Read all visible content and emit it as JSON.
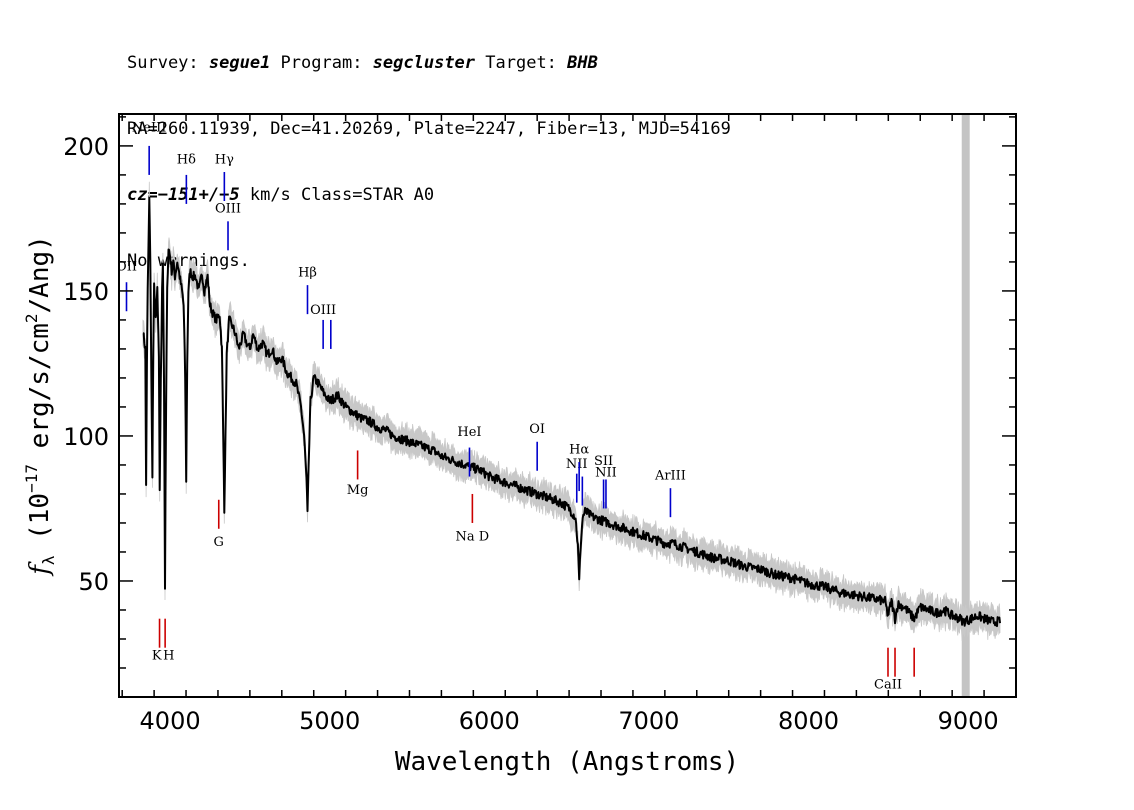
{
  "header": {
    "line1": {
      "survey_label": "Survey: ",
      "survey": "segue1",
      "program_label": " Program: ",
      "program": "segcluster",
      "target_label": " Target: ",
      "target": "BHB"
    },
    "line2": "RA=260.11939, Dec=41.20269, Plate=2247, Fiber=13, MJD=54169",
    "line3": {
      "cz_label": "cz=",
      "cz": "−151+/−5",
      "cz_units": " km/s ",
      "class": "Class=STAR A0"
    },
    "line4": "No warnings."
  },
  "chart_data": {
    "type": "line",
    "xlabel": "Wavelength (Angstroms)",
    "ylabel": "fλ (10⁻¹⁷ erg/s/cm²/Ang)",
    "xlim": [
      3680,
      9300
    ],
    "ylim": [
      10,
      211
    ],
    "x_ticks": [
      4000,
      5000,
      6000,
      7000,
      8000,
      9000
    ],
    "y_ticks": [
      50,
      100,
      150,
      200
    ],
    "grid": false,
    "masked_band": [
      8960,
      9010
    ],
    "colors": {
      "spectrum": "#000000",
      "error": "#c8c8c8",
      "emission": "#0000cc",
      "absorption": "#cc0000",
      "mask": "#c4c4c4"
    },
    "spectrum": [
      [
        3830,
        137
      ],
      [
        3835,
        134
      ],
      [
        3845,
        130
      ],
      [
        3850,
        83
      ],
      [
        3855,
        125
      ],
      [
        3860,
        150
      ],
      [
        3865,
        165
      ],
      [
        3870,
        182
      ],
      [
        3876,
        160
      ],
      [
        3883,
        120
      ],
      [
        3889,
        85
      ],
      [
        3895,
        130
      ],
      [
        3900,
        152
      ],
      [
        3910,
        140
      ],
      [
        3920,
        150
      ],
      [
        3930,
        127
      ],
      [
        3935,
        80
      ],
      [
        3942,
        120
      ],
      [
        3950,
        150
      ],
      [
        3955,
        160
      ],
      [
        3962,
        120
      ],
      [
        3968,
        48
      ],
      [
        3975,
        110
      ],
      [
        3982,
        150
      ],
      [
        3990,
        165
      ],
      [
        4000,
        162
      ],
      [
        4010,
        157
      ],
      [
        4020,
        160
      ],
      [
        4030,
        155
      ],
      [
        4045,
        160
      ],
      [
        4060,
        155
      ],
      [
        4075,
        150
      ],
      [
        4085,
        145
      ],
      [
        4095,
        120
      ],
      [
        4101,
        85
      ],
      [
        4107,
        125
      ],
      [
        4115,
        150
      ],
      [
        4125,
        157
      ],
      [
        4140,
        155
      ],
      [
        4160,
        155
      ],
      [
        4180,
        150
      ],
      [
        4200,
        156
      ],
      [
        4215,
        150
      ],
      [
        4235,
        155
      ],
      [
        4250,
        145
      ],
      [
        4270,
        142
      ],
      [
        4290,
        140
      ],
      [
        4310,
        142
      ],
      [
        4325,
        130
      ],
      [
        4333,
        100
      ],
      [
        4340,
        75
      ],
      [
        4347,
        100
      ],
      [
        4355,
        128
      ],
      [
        4370,
        140
      ],
      [
        4390,
        138
      ],
      [
        4410,
        135
      ],
      [
        4430,
        130
      ],
      [
        4460,
        135
      ],
      [
        4480,
        132
      ],
      [
        4500,
        130
      ],
      [
        4520,
        135
      ],
      [
        4550,
        130
      ],
      [
        4580,
        132
      ],
      [
        4610,
        128
      ],
      [
        4640,
        130
      ],
      [
        4670,
        125
      ],
      [
        4700,
        127
      ],
      [
        4730,
        122
      ],
      [
        4760,
        120
      ],
      [
        4790,
        118
      ],
      [
        4820,
        110
      ],
      [
        4840,
        100
      ],
      [
        4855,
        85
      ],
      [
        4861,
        73
      ],
      [
        4868,
        90
      ],
      [
        4880,
        112
      ],
      [
        4900,
        120
      ],
      [
        4930,
        118
      ],
      [
        4960,
        115
      ],
      [
        5000,
        112
      ],
      [
        5050,
        114
      ],
      [
        5100,
        110
      ],
      [
        5150,
        108
      ],
      [
        5200,
        106
      ],
      [
        5250,
        105
      ],
      [
        5300,
        103
      ],
      [
        5350,
        102
      ],
      [
        5400,
        100
      ],
      [
        5450,
        99
      ],
      [
        5500,
        98
      ],
      [
        5550,
        97
      ],
      [
        5600,
        96
      ],
      [
        5650,
        95
      ],
      [
        5700,
        93
      ],
      [
        5750,
        92
      ],
      [
        5800,
        91
      ],
      [
        5850,
        90
      ],
      [
        5900,
        89
      ],
      [
        5950,
        88
      ],
      [
        6000,
        86
      ],
      [
        6050,
        85
      ],
      [
        6100,
        84
      ],
      [
        6150,
        83
      ],
      [
        6200,
        82
      ],
      [
        6250,
        81
      ],
      [
        6300,
        80
      ],
      [
        6350,
        79
      ],
      [
        6400,
        78
      ],
      [
        6450,
        77
      ],
      [
        6500,
        75
      ],
      [
        6540,
        72
      ],
      [
        6555,
        62
      ],
      [
        6563,
        50
      ],
      [
        6572,
        62
      ],
      [
        6585,
        72
      ],
      [
        6600,
        74
      ],
      [
        6650,
        72
      ],
      [
        6700,
        71
      ],
      [
        6750,
        70
      ],
      [
        6800,
        69
      ],
      [
        6850,
        68
      ],
      [
        6900,
        67
      ],
      [
        6950,
        66
      ],
      [
        7000,
        65
      ],
      [
        7050,
        64
      ],
      [
        7100,
        63
      ],
      [
        7150,
        63
      ],
      [
        7200,
        62
      ],
      [
        7300,
        60
      ],
      [
        7400,
        58
      ],
      [
        7500,
        57
      ],
      [
        7600,
        55
      ],
      [
        7700,
        54
      ],
      [
        7800,
        52
      ],
      [
        7900,
        51
      ],
      [
        8000,
        49
      ],
      [
        8100,
        48
      ],
      [
        8200,
        46
      ],
      [
        8300,
        45
      ],
      [
        8400,
        44
      ],
      [
        8480,
        43
      ],
      [
        8498,
        38
      ],
      [
        8520,
        43
      ],
      [
        8542,
        37
      ],
      [
        8560,
        42
      ],
      [
        8600,
        41
      ],
      [
        8662,
        37
      ],
      [
        8700,
        41
      ],
      [
        8750,
        40
      ],
      [
        8800,
        39
      ],
      [
        8850,
        40
      ],
      [
        8900,
        38
      ],
      [
        8950,
        37
      ],
      [
        8970,
        36
      ],
      [
        9020,
        37
      ],
      [
        9060,
        38
      ],
      [
        9100,
        37
      ],
      [
        9150,
        36
      ],
      [
        9200,
        36
      ]
    ],
    "error_envelope": 4,
    "emission_lines": [
      {
        "label": "OII",
        "x": 3727,
        "y0": 143,
        "y1": 153,
        "label_y": 157
      },
      {
        "label": "NeIII",
        "x": 3869,
        "y0": 190,
        "y1": 200,
        "label_y": 205
      },
      {
        "label": "Hδ",
        "x": 4102,
        "y0": 180,
        "y1": 190,
        "label_y": 194
      },
      {
        "label": "Hγ",
        "x": 4340,
        "y0": 181,
        "y1": 191,
        "label_y": 194
      },
      {
        "label": "OIII",
        "x": 4363,
        "y0": 164,
        "y1": 174,
        "label_y": 177
      },
      {
        "label": "Hβ",
        "x": 4861,
        "y0": 142,
        "y1": 152,
        "label_y": 155
      },
      {
        "label": "OIII",
        "x": 4959,
        "y0": 130,
        "y1": 140,
        "label_y": 142
      },
      {
        "label": "",
        "x": 5007,
        "y0": 130,
        "y1": 140,
        "label_y": 142
      },
      {
        "label": "HeI",
        "x": 5876,
        "y0": 86,
        "y1": 96,
        "label_y": 100
      },
      {
        "label": "OI",
        "x": 6300,
        "y0": 88,
        "y1": 98,
        "label_y": 101
      },
      {
        "label": "NII",
        "x": 6548,
        "y0": 77,
        "y1": 87,
        "label_y": 89
      },
      {
        "label": "Hα",
        "x": 6563,
        "y0": 81,
        "y1": 91,
        "label_y": 94
      },
      {
        "label": "",
        "x": 6583,
        "y0": 76,
        "y1": 86,
        "label_y": 89
      },
      {
        "label": "SII",
        "x": 6716,
        "y0": 75,
        "y1": 85,
        "label_y": 90
      },
      {
        "label": "NII",
        "x": 6731,
        "y0": 75,
        "y1": 85,
        "label_y": 86
      },
      {
        "label": "ArIII",
        "x": 7135,
        "y0": 72,
        "y1": 82,
        "label_y": 85
      }
    ],
    "absorption_lines": [
      {
        "label": "K",
        "x": 3934,
        "y0": 37,
        "y1": 27,
        "label_y": 23
      },
      {
        "label": "H",
        "x": 3969,
        "y0": 37,
        "y1": 27,
        "label_y": 23
      },
      {
        "label": "G",
        "x": 4305,
        "y0": 78,
        "y1": 68,
        "label_y": 62
      },
      {
        "label": "Mg",
        "x": 5175,
        "y0": 95,
        "y1": 85,
        "label_y": 80
      },
      {
        "label": "Na D",
        "x": 5894,
        "y0": 80,
        "y1": 70,
        "label_y": 64
      },
      {
        "label": "CaII",
        "x": 8498,
        "y0": 27,
        "y1": 17,
        "label_y": 13
      },
      {
        "label": "",
        "x": 8542,
        "y0": 27,
        "y1": 17,
        "label_y": 13
      },
      {
        "label": "",
        "x": 8662,
        "y0": 27,
        "y1": 17,
        "label_y": 13
      }
    ]
  }
}
